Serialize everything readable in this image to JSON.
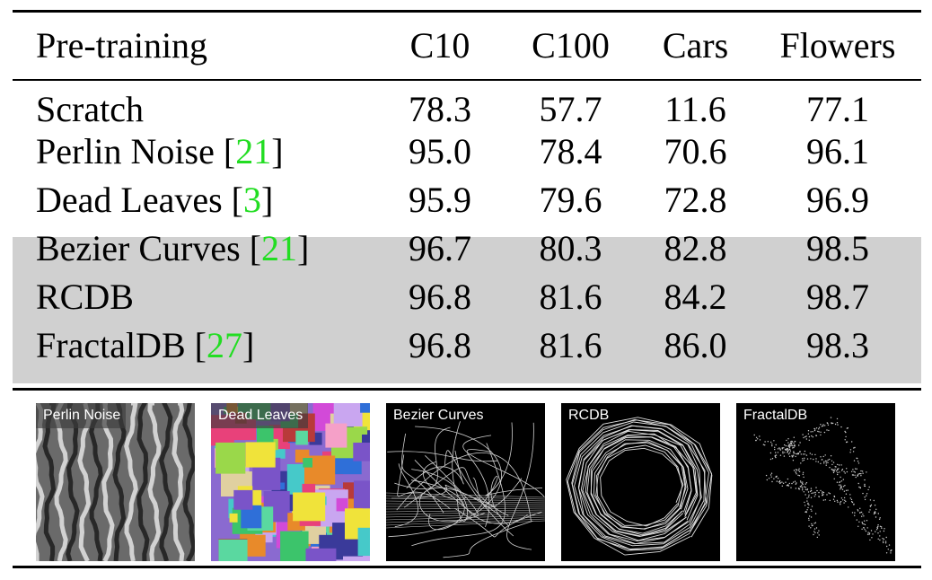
{
  "table": {
    "columns": [
      "Pre-training",
      "C10",
      "C100",
      "Cars",
      "Flowers"
    ],
    "rows": [
      {
        "name": "Scratch",
        "ref": "",
        "values": [
          "78.3",
          "57.7",
          "11.6",
          "77.1"
        ],
        "bold": [
          false,
          false,
          false,
          false
        ],
        "shaded": false
      },
      {
        "name": "Perlin Noise",
        "ref": "21",
        "values": [
          "95.0",
          "78.4",
          "70.6",
          "96.1"
        ],
        "bold": [
          false,
          false,
          false,
          false
        ],
        "shaded": false
      },
      {
        "name": "Dead Leaves",
        "ref": "3",
        "values": [
          "95.9",
          "79.6",
          "72.8",
          "96.9"
        ],
        "bold": [
          false,
          false,
          false,
          false
        ],
        "shaded": false
      },
      {
        "name": "Bezier Curves",
        "ref": "21",
        "values": [
          "96.7",
          "80.3",
          "82.8",
          "98.5"
        ],
        "bold": [
          false,
          false,
          false,
          false
        ],
        "shaded": true
      },
      {
        "name": "RCDB",
        "ref": "",
        "values": [
          "96.8",
          "81.6",
          "84.2",
          "98.7"
        ],
        "bold": [
          true,
          true,
          false,
          true
        ],
        "shaded": true
      },
      {
        "name": "FractalDB",
        "ref": "27",
        "values": [
          "96.8",
          "81.6",
          "86.0",
          "98.3"
        ],
        "bold": [
          true,
          true,
          true,
          false
        ],
        "shaded": true
      }
    ]
  },
  "thumbnails": [
    {
      "label": "Perlin Noise",
      "kind": "perlin"
    },
    {
      "label": "Dead Leaves",
      "kind": "deadleaves"
    },
    {
      "label": "Bezier Curves",
      "kind": "bezier"
    },
    {
      "label": "RCDB",
      "kind": "rcdb"
    },
    {
      "label": "FractalDB",
      "kind": "fractal"
    }
  ],
  "colors": {
    "reference": "#22dd22",
    "shade": "#d0d0d0"
  }
}
